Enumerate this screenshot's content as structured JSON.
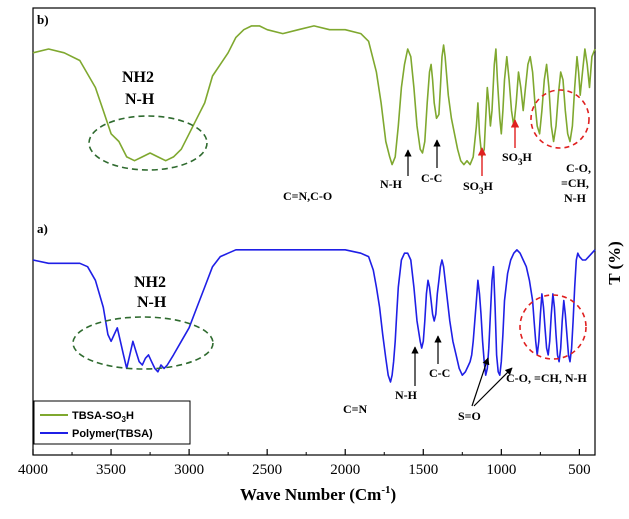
{
  "chart_data": {
    "type": "line",
    "xlabel": "Wave Number (Cm",
    "xlabel_sup": "-1",
    "xlabel_end": ")",
    "ylabel": "T (%)",
    "xlim": [
      4000,
      400
    ],
    "x_ticks": [
      "4000",
      "3500",
      "3000",
      "2500",
      "2000",
      "1500",
      "1000",
      "500"
    ],
    "x_tick_values": [
      4000,
      3500,
      3000,
      2500,
      2000,
      1500,
      1000,
      500
    ],
    "panel_labels": {
      "b": "b)",
      "a": "a)"
    },
    "legend": [
      {
        "name": "TBSA-SO",
        "sub": "3",
        "suffix": "H",
        "color": "#7fa82f"
      },
      {
        "name": "Polymer(TBSA)",
        "sub": "",
        "suffix": "",
        "color": "#1f1fe6"
      }
    ],
    "series": [
      {
        "name": "TBSA-SO3H",
        "color": "#7fa82f",
        "points": [
          [
            4000,
            91
          ],
          [
            3900,
            92
          ],
          [
            3800,
            91
          ],
          [
            3700,
            89
          ],
          [
            3600,
            82
          ],
          [
            3550,
            76
          ],
          [
            3500,
            70
          ],
          [
            3450,
            68
          ],
          [
            3400,
            64
          ],
          [
            3350,
            63
          ],
          [
            3300,
            64
          ],
          [
            3250,
            65
          ],
          [
            3200,
            64
          ],
          [
            3150,
            63
          ],
          [
            3100,
            64
          ],
          [
            3050,
            66
          ],
          [
            3000,
            70
          ],
          [
            2950,
            74
          ],
          [
            2900,
            78
          ],
          [
            2850,
            85
          ],
          [
            2800,
            88
          ],
          [
            2750,
            91
          ],
          [
            2700,
            95
          ],
          [
            2650,
            97
          ],
          [
            2600,
            98
          ],
          [
            2550,
            98
          ],
          [
            2500,
            97
          ],
          [
            2400,
            96
          ],
          [
            2300,
            97
          ],
          [
            2200,
            98
          ],
          [
            2100,
            97
          ],
          [
            2000,
            97
          ],
          [
            1900,
            96
          ],
          [
            1850,
            94
          ],
          [
            1800,
            86
          ],
          [
            1770,
            78
          ],
          [
            1740,
            68
          ],
          [
            1715,
            64
          ],
          [
            1700,
            62
          ],
          [
            1680,
            64
          ],
          [
            1660,
            72
          ],
          [
            1640,
            82
          ],
          [
            1620,
            88
          ],
          [
            1600,
            92
          ],
          [
            1580,
            90
          ],
          [
            1560,
            82
          ],
          [
            1540,
            72
          ],
          [
            1520,
            66
          ],
          [
            1505,
            65
          ],
          [
            1490,
            68
          ],
          [
            1475,
            78
          ],
          [
            1460,
            86
          ],
          [
            1450,
            88
          ],
          [
            1440,
            84
          ],
          [
            1430,
            78
          ],
          [
            1415,
            74
          ],
          [
            1400,
            75
          ],
          [
            1390,
            82
          ],
          [
            1380,
            90
          ],
          [
            1370,
            93
          ],
          [
            1360,
            90
          ],
          [
            1340,
            80
          ],
          [
            1320,
            74
          ],
          [
            1300,
            70
          ],
          [
            1280,
            66
          ],
          [
            1260,
            63
          ],
          [
            1240,
            62
          ],
          [
            1220,
            63
          ],
          [
            1200,
            62
          ],
          [
            1180,
            64
          ],
          [
            1160,
            72
          ],
          [
            1150,
            78
          ],
          [
            1140,
            70
          ],
          [
            1125,
            64
          ],
          [
            1110,
            66
          ],
          [
            1100,
            74
          ],
          [
            1090,
            82
          ],
          [
            1080,
            78
          ],
          [
            1070,
            72
          ],
          [
            1060,
            76
          ],
          [
            1045,
            88
          ],
          [
            1035,
            92
          ],
          [
            1025,
            84
          ],
          [
            1010,
            74
          ],
          [
            1000,
            70
          ],
          [
            990,
            76
          ],
          [
            980,
            84
          ],
          [
            965,
            90
          ],
          [
            950,
            84
          ],
          [
            935,
            76
          ],
          [
            920,
            72
          ],
          [
            905,
            78
          ],
          [
            890,
            86
          ],
          [
            875,
            82
          ],
          [
            860,
            76
          ],
          [
            845,
            82
          ],
          [
            830,
            88
          ],
          [
            815,
            90
          ],
          [
            800,
            86
          ],
          [
            785,
            78
          ],
          [
            770,
            72
          ],
          [
            755,
            70
          ],
          [
            740,
            76
          ],
          [
            725,
            84
          ],
          [
            710,
            88
          ],
          [
            695,
            82
          ],
          [
            680,
            72
          ],
          [
            665,
            68
          ],
          [
            650,
            72
          ],
          [
            635,
            80
          ],
          [
            620,
            86
          ],
          [
            605,
            84
          ],
          [
            590,
            76
          ],
          [
            575,
            70
          ],
          [
            560,
            68
          ],
          [
            545,
            72
          ],
          [
            530,
            82
          ],
          [
            515,
            90
          ],
          [
            505,
            86
          ],
          [
            495,
            80
          ],
          [
            480,
            86
          ],
          [
            465,
            92
          ],
          [
            450,
            88
          ],
          [
            435,
            82
          ],
          [
            420,
            90
          ],
          [
            400,
            92
          ]
        ]
      },
      {
        "name": "Polymer(TBSA)",
        "color": "#1f1fe6",
        "points": [
          [
            4000,
            94
          ],
          [
            3900,
            93
          ],
          [
            3800,
            93
          ],
          [
            3700,
            93
          ],
          [
            3650,
            92
          ],
          [
            3600,
            88
          ],
          [
            3550,
            80
          ],
          [
            3520,
            72
          ],
          [
            3500,
            70
          ],
          [
            3480,
            72
          ],
          [
            3460,
            74
          ],
          [
            3440,
            70
          ],
          [
            3420,
            66
          ],
          [
            3400,
            62
          ],
          [
            3380,
            66
          ],
          [
            3360,
            70
          ],
          [
            3340,
            67
          ],
          [
            3320,
            64
          ],
          [
            3300,
            63
          ],
          [
            3280,
            65
          ],
          [
            3260,
            66
          ],
          [
            3240,
            64
          ],
          [
            3220,
            62
          ],
          [
            3200,
            61
          ],
          [
            3180,
            63
          ],
          [
            3160,
            62
          ],
          [
            3140,
            63
          ],
          [
            3100,
            66
          ],
          [
            3050,
            70
          ],
          [
            3000,
            74
          ],
          [
            2950,
            80
          ],
          [
            2900,
            86
          ],
          [
            2850,
            92
          ],
          [
            2800,
            95
          ],
          [
            2750,
            96
          ],
          [
            2700,
            97
          ],
          [
            2600,
            97
          ],
          [
            2500,
            97
          ],
          [
            2400,
            97
          ],
          [
            2300,
            97
          ],
          [
            2200,
            97
          ],
          [
            2100,
            97
          ],
          [
            2000,
            97
          ],
          [
            1900,
            96
          ],
          [
            1850,
            95
          ],
          [
            1820,
            91
          ],
          [
            1800,
            86
          ],
          [
            1780,
            80
          ],
          [
            1760,
            72
          ],
          [
            1740,
            65
          ],
          [
            1725,
            60
          ],
          [
            1710,
            58
          ],
          [
            1700,
            60
          ],
          [
            1690,
            64
          ],
          [
            1680,
            70
          ],
          [
            1670,
            78
          ],
          [
            1660,
            86
          ],
          [
            1640,
            94
          ],
          [
            1620,
            96
          ],
          [
            1600,
            96
          ],
          [
            1580,
            94
          ],
          [
            1560,
            86
          ],
          [
            1540,
            76
          ],
          [
            1520,
            70
          ],
          [
            1510,
            68
          ],
          [
            1500,
            70
          ],
          [
            1490,
            76
          ],
          [
            1480,
            84
          ],
          [
            1470,
            88
          ],
          [
            1460,
            86
          ],
          [
            1450,
            82
          ],
          [
            1440,
            78
          ],
          [
            1430,
            76
          ],
          [
            1420,
            78
          ],
          [
            1410,
            84
          ],
          [
            1400,
            88
          ],
          [
            1390,
            92
          ],
          [
            1380,
            94
          ],
          [
            1370,
            92
          ],
          [
            1350,
            84
          ],
          [
            1330,
            76
          ],
          [
            1310,
            70
          ],
          [
            1290,
            66
          ],
          [
            1270,
            62
          ],
          [
            1250,
            60
          ],
          [
            1230,
            61
          ],
          [
            1210,
            63
          ],
          [
            1200,
            64
          ],
          [
            1190,
            66
          ],
          [
            1180,
            70
          ],
          [
            1170,
            76
          ],
          [
            1160,
            82
          ],
          [
            1150,
            88
          ],
          [
            1140,
            84
          ],
          [
            1130,
            78
          ],
          [
            1120,
            70
          ],
          [
            1110,
            64
          ],
          [
            1100,
            60
          ],
          [
            1090,
            62
          ],
          [
            1080,
            68
          ],
          [
            1070,
            78
          ],
          [
            1060,
            88
          ],
          [
            1050,
            92
          ],
          [
            1040,
            80
          ],
          [
            1030,
            66
          ],
          [
            1020,
            61
          ],
          [
            1010,
            60
          ],
          [
            1000,
            64
          ],
          [
            990,
            72
          ],
          [
            980,
            82
          ],
          [
            960,
            90
          ],
          [
            940,
            94
          ],
          [
            920,
            96
          ],
          [
            900,
            97
          ],
          [
            880,
            96
          ],
          [
            860,
            94
          ],
          [
            840,
            92
          ],
          [
            820,
            88
          ],
          [
            800,
            82
          ],
          [
            790,
            76
          ],
          [
            780,
            70
          ],
          [
            770,
            66
          ],
          [
            760,
            70
          ],
          [
            750,
            78
          ],
          [
            740,
            84
          ],
          [
            730,
            80
          ],
          [
            720,
            74
          ],
          [
            710,
            68
          ],
          [
            700,
            66
          ],
          [
            690,
            70
          ],
          [
            680,
            78
          ],
          [
            670,
            84
          ],
          [
            660,
            80
          ],
          [
            650,
            72
          ],
          [
            640,
            66
          ],
          [
            630,
            64
          ],
          [
            620,
            68
          ],
          [
            610,
            76
          ],
          [
            600,
            82
          ],
          [
            590,
            78
          ],
          [
            580,
            72
          ],
          [
            570,
            66
          ],
          [
            560,
            64
          ],
          [
            550,
            68
          ],
          [
            540,
            76
          ],
          [
            530,
            86
          ],
          [
            520,
            94
          ],
          [
            510,
            96
          ],
          [
            500,
            95
          ],
          [
            480,
            94
          ],
          [
            460,
            94
          ],
          [
            440,
            95
          ],
          [
            420,
            96
          ],
          [
            400,
            97
          ]
        ]
      }
    ],
    "annotations_b": [
      "NH2",
      "N-H",
      "C=N,C-O",
      "N-H",
      "C-C",
      "SO",
      "SO",
      "C-O,",
      "=CH,",
      "N-H"
    ],
    "annotations_a": [
      "NH2",
      "N-H",
      "C=N",
      "N-H",
      "C-C",
      "S=O",
      "C-O, =CH, N-H"
    ]
  },
  "labels": {
    "b_nh2": "NH2",
    "b_nh": "N-H",
    "b_cn": "C=N,C-O",
    "b_nh2b": "N-H",
    "b_cc": "C-C",
    "b_so3_1": "SO",
    "b_so3_2": "SO",
    "sub3": "3",
    "h": "H",
    "b_co": "C-O,",
    "b_ch": "=CH,",
    "b_nh3": "N-H",
    "a_nh2": "NH2",
    "a_nh": "N-H",
    "a_cn": "C=N",
    "a_nh2b": "N-H",
    "a_cc": "C-C",
    "a_so": "S=O",
    "a_co": "C-O, =CH, N-H"
  }
}
